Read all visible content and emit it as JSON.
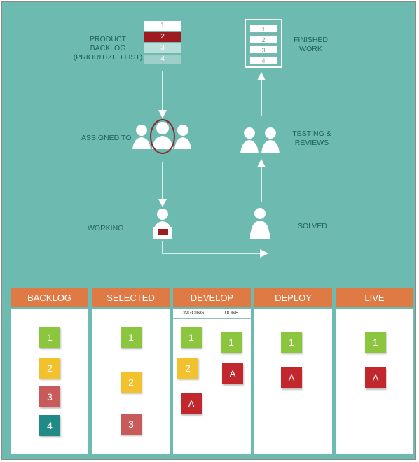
{
  "flow": {
    "product_backlog": "PRODUCT\nBACKLOG\n(PRIORITIZED LIST)",
    "backlog_items": [
      "1",
      "2",
      "3",
      "4"
    ],
    "finished_work": "FINISHED\nWORK",
    "finished_items": [
      "1",
      "2",
      "3",
      "4"
    ],
    "assigned_to": "ASSIGNED TO",
    "testing_reviews": "TESTING &\nREVIEWS",
    "working": "WORKING",
    "solved": "SOLVED"
  },
  "colors": {
    "background": "#6dbab0",
    "header": "#e07a45",
    "green": "#8cc63f",
    "yellow": "#f2c12e",
    "red": "#c1272d",
    "dark_red": "#9e1b20",
    "rose": "#c85a5a",
    "teal": "#1f8a86"
  },
  "board": {
    "columns": [
      {
        "title": "BACKLOG",
        "notes": [
          {
            "text": "1",
            "color": "green"
          },
          {
            "text": "2",
            "color": "yellow"
          },
          {
            "text": "3",
            "color": "rose"
          },
          {
            "text": "4",
            "color": "teal"
          }
        ]
      },
      {
        "title": "SELECTED",
        "notes": [
          {
            "text": "1",
            "color": "green"
          },
          {
            "text": "2",
            "color": "yellow"
          },
          {
            "text": "3",
            "color": "rose"
          }
        ]
      },
      {
        "title": "DEVELOP",
        "sub": [
          "ONGOING",
          "DONE"
        ],
        "ongoing": [
          {
            "text": "1",
            "color": "green"
          },
          {
            "text": "2",
            "color": "yellow"
          },
          {
            "text": "A",
            "color": "red"
          }
        ],
        "done": [
          {
            "text": "1",
            "color": "green"
          },
          {
            "text": "A",
            "color": "red"
          }
        ]
      },
      {
        "title": "DEPLOY",
        "notes": [
          {
            "text": "1",
            "color": "green"
          },
          {
            "text": "A",
            "color": "red"
          }
        ]
      },
      {
        "title": "LIVE",
        "notes": [
          {
            "text": "1",
            "color": "green"
          },
          {
            "text": "A",
            "color": "red"
          }
        ]
      }
    ]
  }
}
